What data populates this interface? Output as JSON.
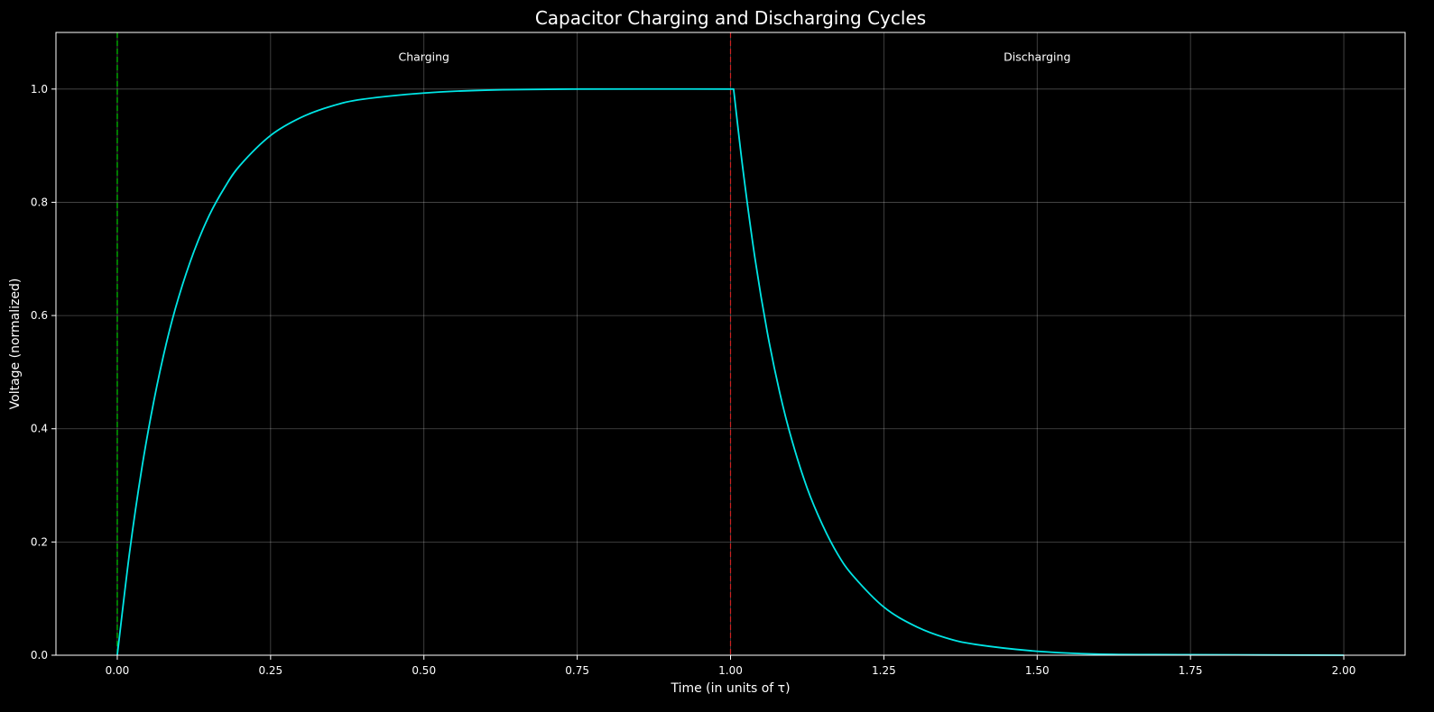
{
  "chart_data": {
    "type": "line",
    "title": "Capacitor Charging and Discharging Cycles",
    "xlabel": "Time (in units of τ)",
    "ylabel": "Voltage (normalized)",
    "xlim": [
      -0.1,
      2.1
    ],
    "ylim": [
      0.0,
      1.1
    ],
    "xticks": [
      0.0,
      0.25,
      0.5,
      0.75,
      1.0,
      1.25,
      1.5,
      1.75,
      2.0
    ],
    "xtick_labels": [
      "0.00",
      "0.25",
      "0.50",
      "0.75",
      "1.00",
      "1.25",
      "1.50",
      "1.75",
      "2.00"
    ],
    "yticks": [
      0.0,
      0.2,
      0.4,
      0.6,
      0.8,
      1.0
    ],
    "ytick_labels": [
      "0.0",
      "0.2",
      "0.4",
      "0.6",
      "0.8",
      "1.0"
    ],
    "grid": true,
    "background": "#000000",
    "series": [
      {
        "color": "#00e5e5",
        "x": [
          0.0,
          0.02,
          0.04,
          0.06,
          0.08,
          0.1,
          0.125,
          0.15,
          0.175,
          0.2,
          0.25,
          0.3,
          0.35,
          0.4,
          0.5,
          0.6,
          0.75,
          1.0,
          1.005,
          1.02,
          1.04,
          1.06,
          1.08,
          1.1,
          1.125,
          1.15,
          1.175,
          1.2,
          1.25,
          1.3,
          1.35,
          1.4,
          1.5,
          1.6,
          1.75,
          2.0
        ],
        "y": [
          0.0,
          0.181,
          0.33,
          0.451,
          0.551,
          0.632,
          0.713,
          0.777,
          0.826,
          0.865,
          0.918,
          0.95,
          0.97,
          0.982,
          0.993,
          0.998,
          1.0,
          1.0,
          1.0,
          0.86,
          0.7,
          0.57,
          0.465,
          0.38,
          0.295,
          0.23,
          0.178,
          0.14,
          0.085,
          0.052,
          0.031,
          0.019,
          0.007,
          0.002,
          0.001,
          0.0
        ]
      }
    ],
    "vertical_lines": [
      {
        "x": 0.0,
        "color": "#00cc00",
        "style": "dashed"
      },
      {
        "x": 1.0,
        "color": "#cc2222",
        "style": "dashed"
      }
    ],
    "annotations": [
      {
        "text": "Charging",
        "x": 0.5,
        "y": 1.05
      },
      {
        "text": "Discharging",
        "x": 1.5,
        "y": 1.05
      }
    ]
  }
}
